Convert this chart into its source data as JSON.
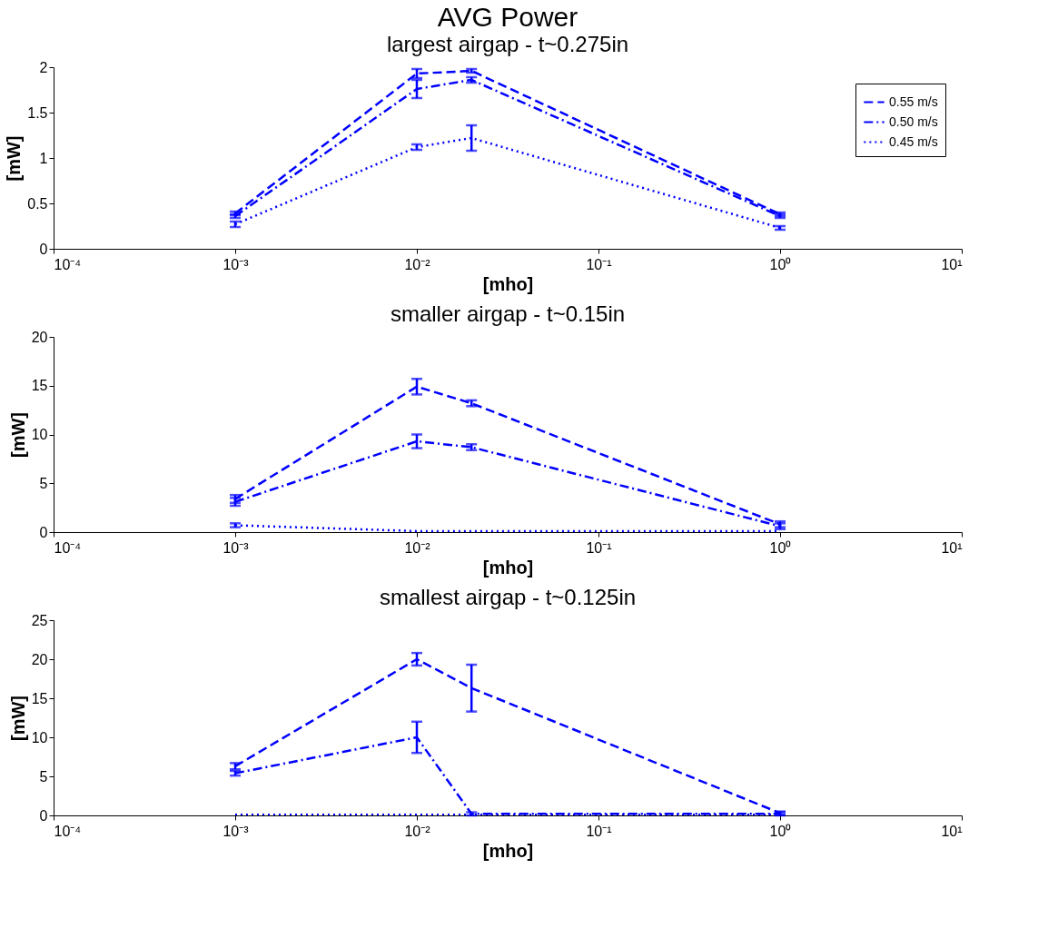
{
  "chart_data": [
    {
      "type": "line",
      "title": "AVG Power",
      "subtitle": "largest airgap - t~0.275in",
      "xlabel": "[mho]",
      "ylabel": "[mW]",
      "log": "x",
      "legend": "top right",
      "x": [
        0.001,
        0.01,
        0.02,
        1
      ],
      "xlim": [
        0.0001,
        10
      ],
      "xticks": [
        {
          "value": 0.0001,
          "label": "10⁻⁴"
        },
        {
          "value": 0.001,
          "label": "10⁻³"
        },
        {
          "value": 0.01,
          "label": "10⁻²"
        },
        {
          "value": 0.1,
          "label": "10⁻¹"
        },
        {
          "value": 1,
          "label": "10⁰"
        },
        {
          "value": 10,
          "label": "10¹"
        }
      ],
      "ylim": [
        0,
        2
      ],
      "yticks": [
        0,
        0.5,
        1,
        1.5,
        2
      ],
      "series": [
        {
          "name": "0.55 m/s",
          "color": "#0000ff",
          "line_style": "dashed",
          "values": [
            0.39,
            1.93,
            1.96,
            0.38
          ],
          "errors": [
            0.02,
            0.05,
            0.02,
            0.02
          ]
        },
        {
          "name": "0.50 m/s",
          "color": "#0000ff",
          "line_style": "dashdot",
          "values": [
            0.36,
            1.76,
            1.86,
            0.36
          ],
          "errors": [
            0.02,
            0.1,
            0.03,
            0.02
          ]
        },
        {
          "name": "0.45 m/s",
          "color": "#0000ff",
          "line_style": "dotted",
          "values": [
            0.27,
            1.12,
            1.22,
            0.23
          ],
          "errors": [
            0.03,
            0.03,
            0.14,
            0.02
          ]
        }
      ]
    },
    {
      "type": "line",
      "title": "smaller airgap - t~0.15in",
      "xlabel": "[mho]",
      "ylabel": "[mW]",
      "log": "x",
      "x": [
        0.001,
        0.01,
        0.02,
        1
      ],
      "xlim": [
        0.0001,
        10
      ],
      "xticks": [
        {
          "value": 0.0001,
          "label": "10⁻⁴"
        },
        {
          "value": 0.001,
          "label": "10⁻³"
        },
        {
          "value": 0.01,
          "label": "10⁻²"
        },
        {
          "value": 0.1,
          "label": "10⁻¹"
        },
        {
          "value": 1,
          "label": "10⁰"
        },
        {
          "value": 10,
          "label": "10¹"
        }
      ],
      "ylim": [
        0,
        20
      ],
      "yticks": [
        0,
        5,
        10,
        15,
        20
      ],
      "series": [
        {
          "color": "#0000ff",
          "line_style": "dashed",
          "values": [
            3.4,
            14.9,
            13.2,
            0.8
          ],
          "errors": [
            0.4,
            0.8,
            0.3,
            0.3
          ]
        },
        {
          "color": "#0000ff",
          "line_style": "dashdot",
          "values": [
            3.1,
            9.3,
            8.7,
            0.6
          ],
          "errors": [
            0.4,
            0.7,
            0.3,
            0.3
          ]
        },
        {
          "color": "#0000ff",
          "line_style": "dotted",
          "values": [
            0.7,
            0.1,
            0.1,
            0.1
          ],
          "errors": [
            0.2,
            null,
            null,
            null
          ]
        }
      ]
    },
    {
      "type": "line",
      "title": "smallest airgap - t~0.125in",
      "xlabel": "[mho]",
      "ylabel": "[mW]",
      "log": "x",
      "x": [
        0.001,
        0.01,
        0.02,
        1
      ],
      "xlim": [
        0.0001,
        10
      ],
      "xticks": [
        {
          "value": 0.0001,
          "label": "10⁻⁴"
        },
        {
          "value": 0.001,
          "label": "10⁻³"
        },
        {
          "value": 0.01,
          "label": "10⁻²"
        },
        {
          "value": 0.1,
          "label": "10⁻¹"
        },
        {
          "value": 1,
          "label": "10⁰"
        },
        {
          "value": 10,
          "label": "10¹"
        }
      ],
      "ylim": [
        0,
        25
      ],
      "yticks": [
        0,
        5,
        10,
        15,
        20,
        25
      ],
      "series": [
        {
          "color": "#0000ff",
          "line_style": "dashed",
          "values": [
            6.3,
            20,
            16.3,
            0.3
          ],
          "errors": [
            0.4,
            0.8,
            3,
            0.2
          ]
        },
        {
          "color": "#0000ff",
          "line_style": "dashdot",
          "values": [
            5.4,
            10,
            0.2,
            0.2
          ],
          "errors": [
            0.3,
            2,
            0.2,
            0.2
          ]
        },
        {
          "color": "#0000ff",
          "line_style": "dotted",
          "values": [
            0.1,
            0.1,
            0.1,
            0.1
          ]
        }
      ]
    }
  ]
}
